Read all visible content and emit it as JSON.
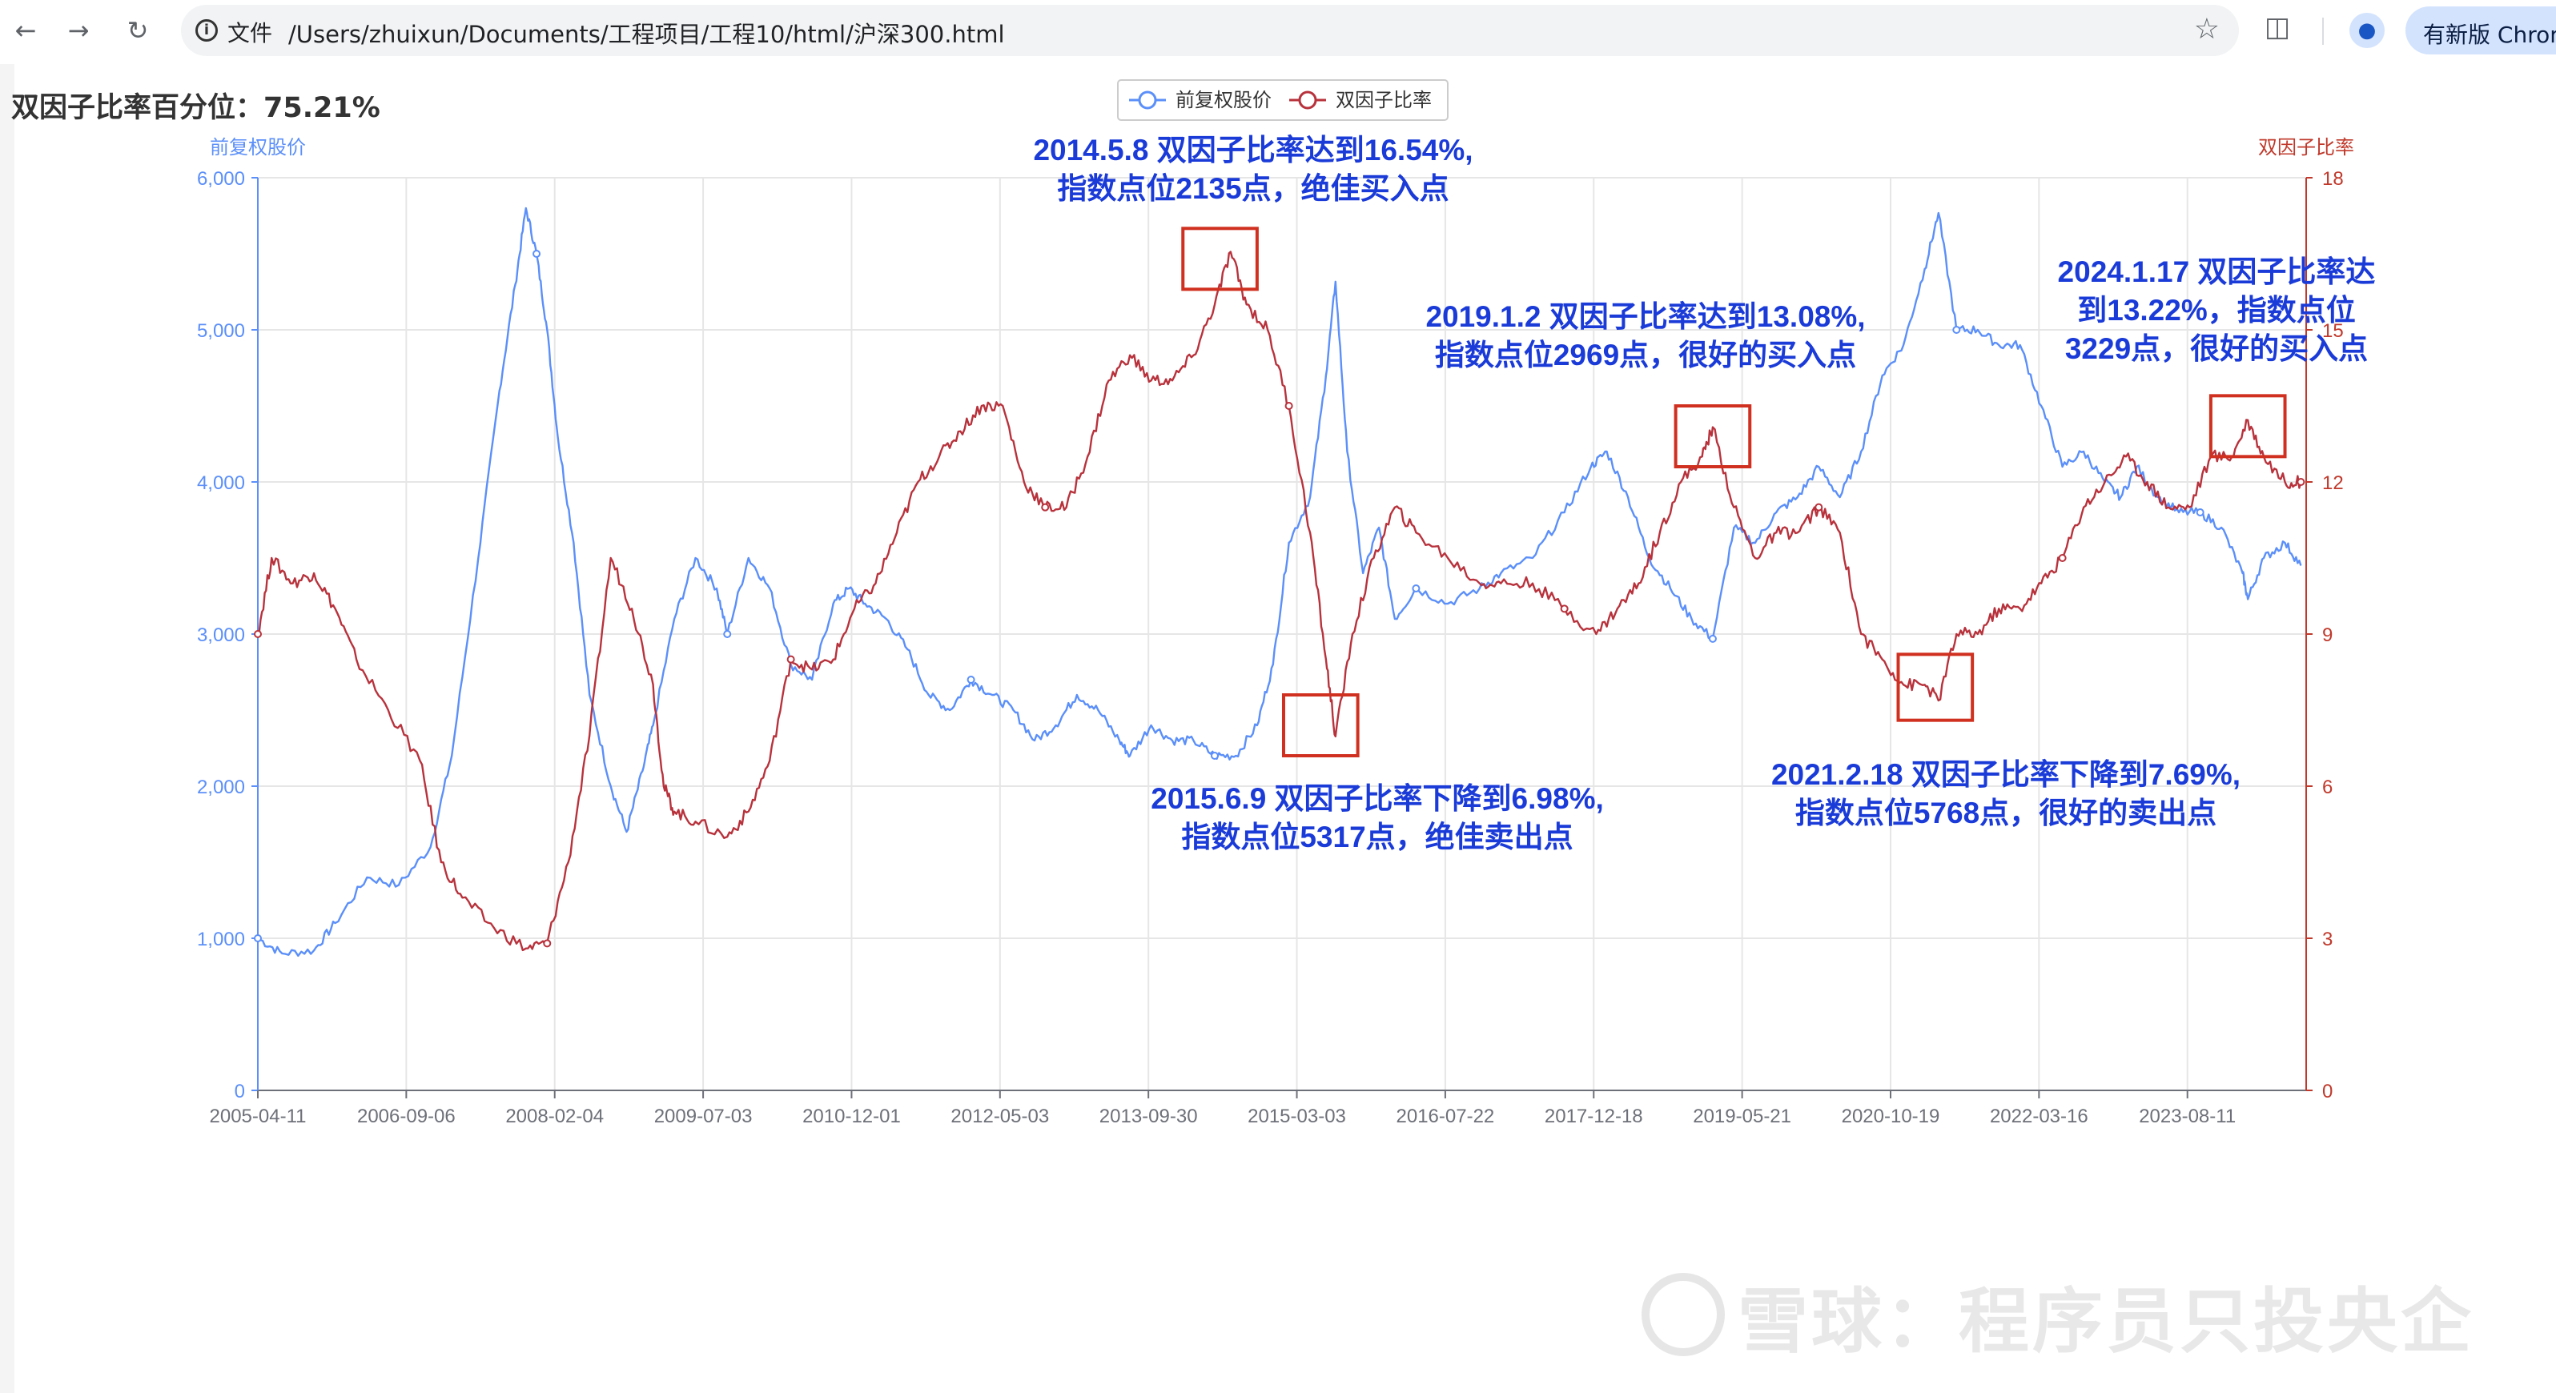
{
  "browser": {
    "back_icon": "arrow-left-icon",
    "forward_icon": "arrow-right-icon",
    "reload_icon": "reload-icon",
    "info_icon": "info-icon",
    "file_label": "文件",
    "url": "/Users/zhuixun/Documents/工程项目/工程10/html/沪深300.html",
    "update_label": "有新版 Chrom"
  },
  "page": {
    "title": "双因子比率百分位：75.21%"
  },
  "watermark": {
    "text": "雪球：程序员只投央企"
  },
  "chart_data": {
    "type": "line",
    "legend": [
      "前复权股价",
      "双因子比率"
    ],
    "legend_position": "top-center",
    "x_tick_labels": [
      "2005-04-11",
      "2006-09-06",
      "2008-02-04",
      "2009-07-03",
      "2010-12-01",
      "2012-05-03",
      "2013-09-30",
      "2015-03-03",
      "2016-07-22",
      "2017-12-18",
      "2019-05-21",
      "2020-10-19",
      "2022-03-16",
      "2023-08-11"
    ],
    "y_left": {
      "label": "前复权股价",
      "range": [
        0,
        6000
      ],
      "ticks": [
        "0",
        "1,000",
        "2,000",
        "3,000",
        "4,000",
        "5,000",
        "6,000"
      ],
      "color": "#5b8ff9"
    },
    "y_right": {
      "label": "双因子比率",
      "range": [
        0,
        18
      ],
      "ticks": [
        "0",
        "3",
        "6",
        "9",
        "12",
        "15",
        "18"
      ],
      "color": "#c0392b"
    },
    "grid": true,
    "series": [
      {
        "name": "前复权股价",
        "axis": "left",
        "color": "#5b8ff9",
        "x": [
          2005.27,
          2005.5,
          2005.8,
          2006.0,
          2006.3,
          2006.6,
          2006.9,
          2007.1,
          2007.35,
          2007.55,
          2007.7,
          2007.8,
          2007.9,
          2008.0,
          2008.1,
          2008.25,
          2008.4,
          2008.6,
          2008.75,
          2008.9,
          2009.0,
          2009.2,
          2009.4,
          2009.6,
          2009.7,
          2009.9,
          2010.1,
          2010.3,
          2010.5,
          2010.7,
          2010.85,
          2011.0,
          2011.2,
          2011.4,
          2011.6,
          2011.8,
          2012.0,
          2012.2,
          2012.4,
          2012.6,
          2012.8,
          2013.0,
          2013.2,
          2013.4,
          2013.5,
          2013.7,
          2013.9,
          2014.1,
          2014.3,
          2014.5,
          2014.7,
          2014.85,
          2015.0,
          2015.2,
          2015.35,
          2015.44,
          2015.55,
          2015.7,
          2015.85,
          2016.0,
          2016.2,
          2016.5,
          2016.8,
          2017.0,
          2017.3,
          2017.6,
          2017.85,
          2018.0,
          2018.2,
          2018.4,
          2018.6,
          2018.8,
          2019.0,
          2019.2,
          2019.4,
          2019.6,
          2019.8,
          2020.0,
          2020.2,
          2020.4,
          2020.6,
          2020.8,
          2021.0,
          2021.13,
          2021.3,
          2021.5,
          2021.7,
          2021.9,
          2022.1,
          2022.3,
          2022.5,
          2022.7,
          2022.85,
          2023.0,
          2023.2,
          2023.4,
          2023.6,
          2023.8,
          2024.0,
          2024.05,
          2024.2,
          2024.4,
          2024.55
        ],
        "y": [
          1000,
          900,
          920,
          1100,
          1400,
          1350,
          1600,
          2200,
          3500,
          4600,
          5300,
          5800,
          5500,
          5000,
          4300,
          3600,
          2600,
          2000,
          1700,
          2100,
          2400,
          3100,
          3500,
          3300,
          3000,
          3500,
          3300,
          2800,
          2700,
          3200,
          3300,
          3200,
          3100,
          2900,
          2600,
          2500,
          2700,
          2600,
          2500,
          2300,
          2400,
          2600,
          2500,
          2300,
          2200,
          2400,
          2300,
          2300,
          2200,
          2200,
          2400,
          2800,
          3600,
          3900,
          4700,
          5317,
          4200,
          3400,
          3700,
          3100,
          3300,
          3200,
          3300,
          3400,
          3500,
          3800,
          4100,
          4200,
          3900,
          3500,
          3300,
          3100,
          2969,
          3700,
          3600,
          3800,
          3900,
          4100,
          3900,
          4200,
          4700,
          4900,
          5400,
          5768,
          5000,
          5000,
          4900,
          4900,
          4500,
          4100,
          4200,
          4000,
          3900,
          4100,
          3900,
          3800,
          3800,
          3700,
          3400,
          3229,
          3500,
          3600,
          3450
        ],
        "labels_in_annotations": [
          "2135",
          "5317",
          "2969",
          "5768",
          "3229"
        ]
      },
      {
        "name": "双因子比率",
        "axis": "right",
        "color": "#b8323c",
        "x": [
          2005.27,
          2005.4,
          2005.6,
          2005.8,
          2006.0,
          2006.2,
          2006.5,
          2006.8,
          2007.0,
          2007.2,
          2007.5,
          2007.8,
          2008.0,
          2008.2,
          2008.4,
          2008.6,
          2008.8,
          2009.0,
          2009.1,
          2009.2,
          2009.4,
          2009.7,
          2009.9,
          2010.1,
          2010.3,
          2010.5,
          2010.7,
          2010.9,
          2011.1,
          2011.3,
          2011.5,
          2011.7,
          2011.9,
          2012.1,
          2012.3,
          2012.5,
          2012.7,
          2012.9,
          2013.1,
          2013.3,
          2013.5,
          2013.7,
          2013.9,
          2014.1,
          2014.3,
          2014.45,
          2014.6,
          2014.8,
          2015.0,
          2015.2,
          2015.35,
          2015.44,
          2015.6,
          2015.8,
          2016.0,
          2016.2,
          2016.5,
          2016.8,
          2017.0,
          2017.3,
          2017.6,
          2017.9,
          2018.1,
          2018.3,
          2018.5,
          2018.7,
          2018.9,
          2019.0,
          2019.2,
          2019.4,
          2019.6,
          2019.8,
          2020.0,
          2020.2,
          2020.4,
          2020.6,
          2020.8,
          2021.0,
          2021.13,
          2021.3,
          2021.5,
          2021.7,
          2021.9,
          2022.1,
          2022.3,
          2022.5,
          2022.7,
          2022.9,
          2023.1,
          2023.3,
          2023.5,
          2023.7,
          2023.9,
          2024.05,
          2024.2,
          2024.4,
          2024.55
        ],
        "y": [
          9.0,
          10.5,
          10.0,
          10.2,
          9.5,
          8.5,
          7.5,
          6.5,
          4.5,
          3.8,
          3.2,
          2.8,
          2.9,
          4.5,
          7.0,
          10.5,
          9.5,
          8.0,
          6.0,
          5.5,
          5.3,
          5.0,
          5.5,
          6.5,
          8.5,
          8.3,
          8.5,
          9.5,
          10.0,
          11.0,
          12.0,
          12.5,
          13.0,
          13.5,
          13.5,
          12.0,
          11.5,
          11.5,
          12.5,
          14.0,
          14.5,
          14.0,
          14.0,
          14.5,
          15.5,
          16.54,
          15.5,
          15.0,
          13.5,
          11.0,
          8.5,
          6.98,
          9.0,
          10.5,
          11.5,
          11.0,
          10.5,
          10.0,
          10.0,
          10.0,
          9.5,
          9.0,
          9.5,
          10.0,
          11.0,
          12.0,
          12.5,
          13.08,
          11.5,
          10.5,
          11.0,
          11.0,
          11.5,
          11.0,
          9.0,
          8.5,
          8.0,
          8.0,
          7.69,
          9.0,
          9.0,
          9.5,
          9.5,
          10.0,
          10.5,
          11.5,
          12.0,
          12.5,
          12.0,
          11.5,
          11.5,
          12.5,
          12.5,
          13.22,
          12.5,
          12.0,
          12.0
        ],
        "labels_in_annotations": [
          "16.54%",
          "6.98%",
          "13.08%",
          "7.69%",
          "13.22%"
        ]
      }
    ],
    "annotations": [
      {
        "lines": [
          "2014.5.8 双因子比率达到16.54%,",
          "指数点位2135点，绝佳买入点"
        ],
        "color": "#1a3bd8"
      },
      {
        "lines": [
          "2015.6.9 双因子比率下降到6.98%,",
          "指数点位5317点，绝佳卖出点"
        ],
        "color": "#1a3bd8"
      },
      {
        "lines": [
          "2019.1.2 双因子比率达到13.08%,",
          "指数点位2969点，很好的买入点"
        ],
        "color": "#1a3bd8"
      },
      {
        "lines": [
          "2021.2.18 双因子比率下降到7.69%,",
          "指数点位5768点，很好的卖出点"
        ],
        "color": "#1a3bd8"
      },
      {
        "lines": [
          "2024.1.17 双因子比率达",
          "到13.22%，指数点位",
          "3229点，很好的买入点"
        ],
        "color": "#1a3bd8"
      }
    ],
    "highlight_boxes": [
      {
        "x_range": [
          2014.0,
          2014.7
        ],
        "y_right_range": [
          15.8,
          17.0
        ]
      },
      {
        "x_range": [
          2014.95,
          2015.65
        ],
        "y_right_range": [
          6.6,
          7.8
        ]
      },
      {
        "x_range": [
          2018.65,
          2019.35
        ],
        "y_right_range": [
          12.3,
          13.5
        ]
      },
      {
        "x_range": [
          2020.75,
          2021.45
        ],
        "y_right_range": [
          7.3,
          8.6
        ]
      },
      {
        "x_range": [
          2023.7,
          2024.4
        ],
        "y_right_range": [
          12.5,
          13.7
        ]
      }
    ],
    "box_color": "#d0301f"
  }
}
